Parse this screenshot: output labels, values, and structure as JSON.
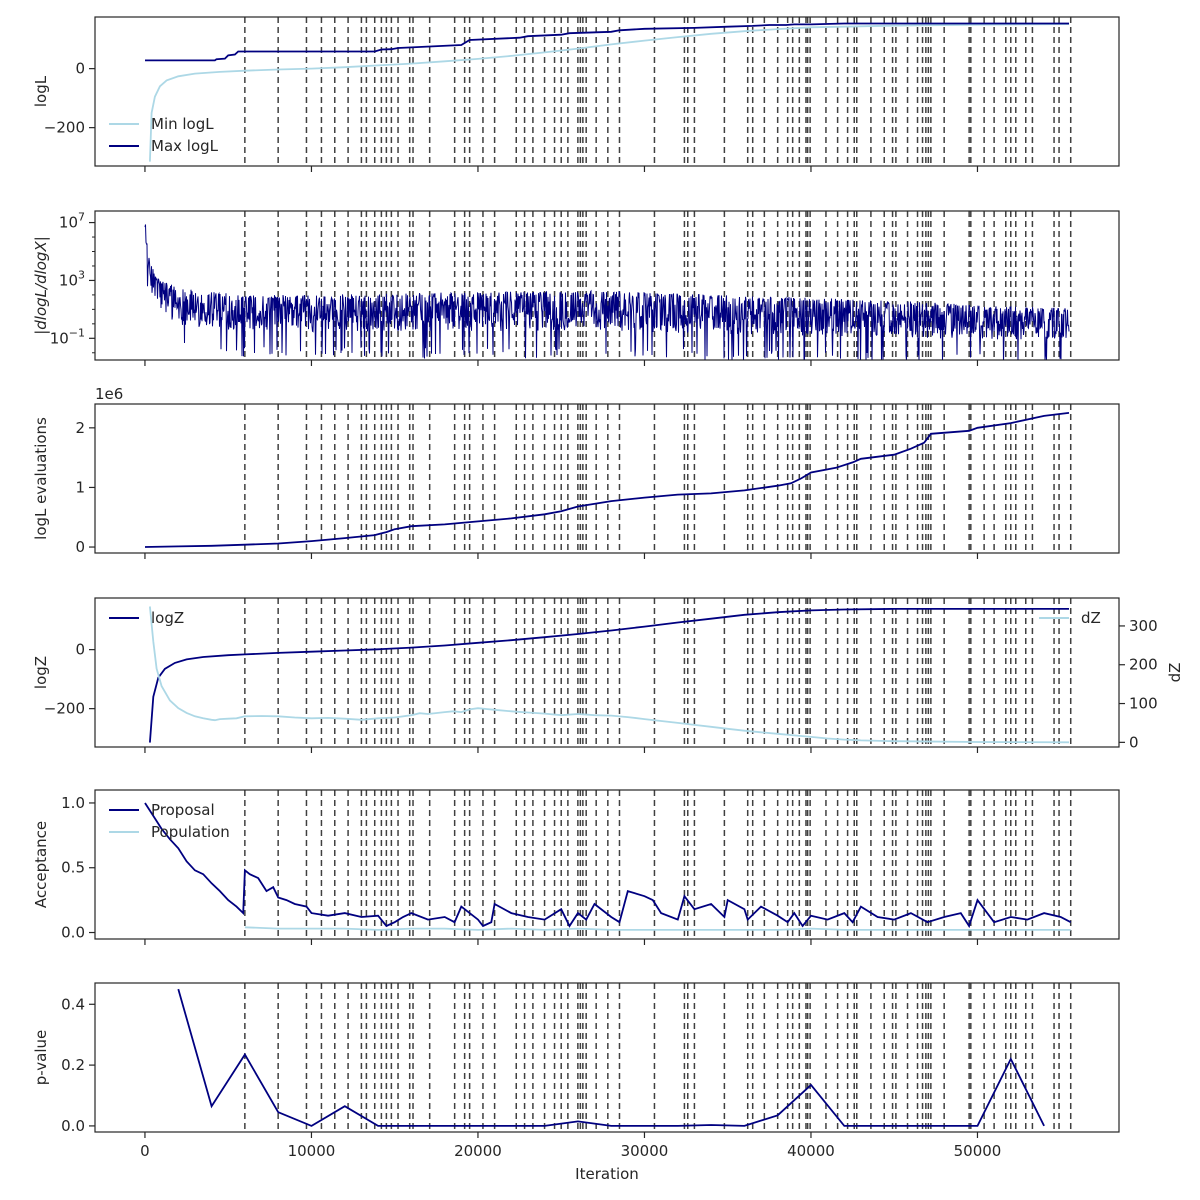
{
  "figure": {
    "xlabel": "Iteration",
    "xlim": [
      -3000,
      58500
    ],
    "xticks": [
      0,
      10000,
      20000,
      30000,
      40000,
      50000
    ],
    "xtick_labels": [
      "0",
      "10000",
      "20000",
      "30000",
      "40000",
      "50000"
    ]
  },
  "colors": {
    "light": "#add8e6",
    "dark": "#000080",
    "vline": "#404040"
  },
  "vlines": [
    6000,
    8000,
    9700,
    10600,
    11400,
    12200,
    13000,
    13300,
    13800,
    14200,
    14500,
    14800,
    15200,
    15900,
    16100,
    17100,
    18600,
    19200,
    19500,
    20300,
    21000,
    22300,
    22800,
    23300,
    24000,
    24600,
    25000,
    25400,
    26000,
    26150,
    26300,
    26500,
    27100,
    27800,
    28500,
    30600,
    32400,
    32600,
    33000,
    34800,
    36200,
    36500,
    37200,
    38000,
    38600,
    38900,
    39300,
    39700,
    39800,
    39950,
    40900,
    41600,
    42200,
    42600,
    42750,
    43600,
    44400,
    44900,
    45100,
    45800,
    46400,
    46700,
    46900,
    47050,
    47200,
    48000,
    49500,
    49600,
    50400,
    51000,
    51700,
    52000,
    52300,
    52900,
    53300,
    54600,
    54900,
    55600
  ],
  "chart_data": [
    {
      "type": "line",
      "ylabel": "logL",
      "ylim": [
        -330,
        175
      ],
      "yticks": [
        -200,
        0
      ],
      "ytick_labels": [
        "−200",
        "0"
      ],
      "legend": "bottom-left",
      "series": [
        {
          "name": "Min logL",
          "color": "light",
          "x": [
            300,
            400,
            600,
            900,
            1300,
            2000,
            3000,
            4500,
            6000,
            8000,
            10000,
            12000,
            14000,
            16000,
            18000,
            20000,
            22000,
            24000,
            26000,
            28000,
            30000,
            32000,
            34000,
            36000,
            38000,
            40000,
            45000,
            50000,
            55500
          ],
          "y": [
            -315,
            -150,
            -95,
            -60,
            -40,
            -26,
            -17,
            -11,
            -7,
            -3,
            0,
            5,
            11,
            17,
            25,
            33,
            43,
            55,
            68,
            82,
            95,
            107,
            118,
            127,
            134,
            140,
            146,
            149,
            151
          ]
        },
        {
          "name": "Max logL",
          "color": "dark",
          "x": [
            0,
            4200,
            4300,
            4800,
            5000,
            5400,
            5600,
            13800,
            14200,
            14800,
            15200,
            16000,
            19000,
            19500,
            22500,
            23000,
            25000,
            25500,
            28000,
            28500,
            30000,
            33000,
            35000,
            36500,
            37500,
            38500,
            39000,
            40000,
            42000,
            55500
          ],
          "y": [
            28,
            28,
            32,
            34,
            45,
            48,
            58,
            58,
            65,
            66,
            70,
            72,
            80,
            97,
            105,
            110,
            115,
            120,
            125,
            130,
            135,
            138,
            142,
            145,
            148,
            148,
            150,
            150,
            153,
            153
          ]
        }
      ]
    },
    {
      "type": "line",
      "ylabel": "|dlogL/dlogX|",
      "yscale": "log",
      "ylim": [
        -2.5,
        7.8
      ],
      "yticks": [
        7,
        3,
        -1
      ],
      "ytick_labels": [
        "10^7",
        "10^3",
        "10^-1"
      ],
      "series": [
        {
          "name": "",
          "color": "dark",
          "noisy": true,
          "x": [
            0,
            100,
            300,
            600,
            1000,
            2000,
            4000,
            6000,
            10000,
            15000,
            20000,
            25000,
            30000,
            35000,
            40000,
            45000,
            50000,
            55500
          ],
          "y_upper": [
            7.6,
            5.8,
            4.2,
            3.5,
            3.0,
            2.5,
            2.2,
            2.0,
            2.0,
            2.1,
            2.2,
            2.3,
            2.2,
            2.0,
            1.8,
            1.6,
            1.3,
            1.1
          ],
          "y_lower": [
            7.0,
            4.0,
            2.0,
            1.0,
            0.0,
            -0.8,
            -1.1,
            -1.2,
            -1.3,
            -1.3,
            -1.3,
            -1.3,
            -1.4,
            -1.5,
            -1.6,
            -1.7,
            -1.8,
            -1.7
          ]
        }
      ]
    },
    {
      "type": "line",
      "ylabel": "logL evaluations",
      "offset_label": "1e6",
      "ylim": [
        -0.1,
        2.4
      ],
      "yticks": [
        0,
        1,
        2
      ],
      "ytick_labels": [
        "0",
        "1",
        "2"
      ],
      "series": [
        {
          "name": "",
          "color": "dark",
          "x": [
            0,
            2000,
            4000,
            6000,
            8000,
            10000,
            12000,
            13800,
            14500,
            15000,
            16000,
            18000,
            20000,
            22000,
            24000,
            25000,
            26000,
            28000,
            30000,
            32000,
            34000,
            36000,
            38000,
            38800,
            39400,
            40000,
            41500,
            42500,
            43000,
            45000,
            46000,
            46800,
            47200,
            49500,
            50000,
            52000,
            54000,
            55500
          ],
          "y": [
            0,
            0.01,
            0.02,
            0.04,
            0.06,
            0.1,
            0.15,
            0.2,
            0.25,
            0.3,
            0.35,
            0.38,
            0.43,
            0.48,
            0.55,
            0.6,
            0.68,
            0.77,
            0.83,
            0.88,
            0.9,
            0.95,
            1.03,
            1.07,
            1.15,
            1.25,
            1.33,
            1.42,
            1.48,
            1.55,
            1.65,
            1.75,
            1.9,
            1.95,
            2.0,
            2.08,
            2.2,
            2.25
          ]
        }
      ]
    },
    {
      "type": "line",
      "ylabel": "logZ",
      "ylim": [
        -330,
        175
      ],
      "yticks": [
        -200,
        0
      ],
      "ytick_labels": [
        "−200",
        "0"
      ],
      "ylabel_right": "dZ",
      "ylim_right": [
        -12,
        372
      ],
      "yticks_right": [
        0,
        100,
        200,
        300
      ],
      "ytick_labels_right": [
        "0",
        "100",
        "200",
        "300"
      ],
      "series": [
        {
          "name": "logZ",
          "color": "dark",
          "axis": "left",
          "legend": "top-left",
          "x": [
            300,
            500,
            800,
            1200,
            1800,
            2500,
            3500,
            5000,
            6000,
            8000,
            10000,
            12000,
            14000,
            16000,
            18000,
            20000,
            22000,
            24000,
            26000,
            28000,
            30000,
            32000,
            34000,
            36000,
            38000,
            40000,
            42000,
            45000,
            55500
          ],
          "y": [
            -315,
            -160,
            -95,
            -65,
            -45,
            -33,
            -25,
            -19,
            -16,
            -11,
            -7,
            -3,
            1,
            7,
            14,
            23,
            32,
            42,
            53,
            65,
            78,
            92,
            105,
            118,
            127,
            133,
            136,
            138,
            138
          ]
        },
        {
          "name": "dZ",
          "color": "light",
          "axis": "right",
          "legend": "top-right",
          "x": [
            300,
            500,
            700,
            1000,
            1500,
            2000,
            2500,
            3000,
            3500,
            4000,
            4200,
            4500,
            5000,
            5500,
            6000,
            7000,
            8000,
            9000,
            10000,
            11000,
            12000,
            13000,
            14000,
            15000,
            16000,
            16500,
            17000,
            18000,
            18500,
            19000,
            19500,
            20000,
            20500,
            21000,
            22000,
            23000,
            24000,
            25000,
            26000,
            27000,
            28000,
            29000,
            30000,
            31000,
            32000,
            33000,
            34000,
            35000,
            36000,
            37000,
            38000,
            39000,
            40000,
            41000,
            42000,
            43000,
            45000,
            50000,
            55500
          ],
          "y": [
            350,
            260,
            190,
            145,
            108,
            88,
            76,
            67,
            62,
            58,
            57,
            60,
            61,
            62,
            67,
            68,
            67,
            64,
            62,
            63,
            61,
            58,
            62,
            64,
            70,
            75,
            73,
            78,
            80,
            78,
            85,
            88,
            86,
            84,
            80,
            77,
            74,
            70,
            73,
            70,
            69,
            65,
            60,
            55,
            50,
            45,
            40,
            35,
            30,
            26,
            22,
            18,
            14,
            10,
            7,
            5,
            3,
            1,
            0
          ]
        }
      ]
    },
    {
      "type": "line",
      "ylabel": "Acceptance",
      "ylim": [
        -0.05,
        1.1
      ],
      "yticks": [
        0,
        0.5,
        1
      ],
      "ytick_labels": [
        "0.0",
        "0.5",
        "1.0"
      ],
      "legend": "top-left",
      "series": [
        {
          "name": "Proposal",
          "color": "dark",
          "x": [
            0,
            500,
            1000,
            1500,
            2000,
            2500,
            3000,
            3500,
            4000,
            4500,
            5000,
            5500,
            5900,
            6000,
            6300,
            6800,
            7300,
            7700,
            8000,
            8500,
            9000,
            9700,
            10000,
            11000,
            12000,
            13000,
            14000,
            14500,
            15000,
            15500,
            16000,
            17000,
            18000,
            18600,
            19000,
            20000,
            20300,
            20800,
            21000,
            22000,
            23000,
            24000,
            25000,
            25500,
            26000,
            26500,
            27000,
            28000,
            28500,
            29000,
            30000,
            30500,
            31000,
            32000,
            32400,
            33000,
            34000,
            34800,
            35000,
            36000,
            36200,
            37000,
            38000,
            38600,
            39000,
            39500,
            40000,
            41000,
            42000,
            42500,
            43000,
            44000,
            45000,
            46000,
            47000,
            48000,
            49000,
            49500,
            50000,
            51000,
            52000,
            53000,
            54000,
            55000,
            55600
          ],
          "y": [
            1.0,
            0.9,
            0.8,
            0.72,
            0.65,
            0.55,
            0.48,
            0.45,
            0.38,
            0.32,
            0.25,
            0.2,
            0.15,
            0.48,
            0.45,
            0.42,
            0.32,
            0.35,
            0.27,
            0.25,
            0.22,
            0.2,
            0.15,
            0.13,
            0.15,
            0.12,
            0.13,
            0.05,
            0.08,
            0.12,
            0.15,
            0.1,
            0.12,
            0.08,
            0.2,
            0.1,
            0.05,
            0.08,
            0.22,
            0.15,
            0.12,
            0.1,
            0.18,
            0.05,
            0.15,
            0.1,
            0.22,
            0.12,
            0.08,
            0.32,
            0.28,
            0.25,
            0.15,
            0.1,
            0.28,
            0.18,
            0.22,
            0.12,
            0.25,
            0.18,
            0.1,
            0.2,
            0.13,
            0.08,
            0.15,
            0.05,
            0.13,
            0.1,
            0.15,
            0.08,
            0.2,
            0.12,
            0.1,
            0.15,
            0.08,
            0.12,
            0.15,
            0.05,
            0.25,
            0.08,
            0.12,
            0.1,
            0.15,
            0.12,
            0.08
          ]
        },
        {
          "name": "Population",
          "color": "light",
          "x": [
            6000,
            8000,
            10000,
            12000,
            14000,
            16000,
            18000,
            20000,
            22000,
            24000,
            26000,
            28000,
            30000,
            32000,
            34000,
            36000,
            38000,
            40000,
            42000,
            44000,
            46000,
            48000,
            50000,
            52000,
            54000,
            55600
          ],
          "y": [
            0.04,
            0.03,
            0.03,
            0.03,
            0.02,
            0.03,
            0.03,
            0.02,
            0.03,
            0.02,
            0.03,
            0.02,
            0.02,
            0.02,
            0.02,
            0.02,
            0.02,
            0.03,
            0.02,
            0.02,
            0.02,
            0.02,
            0.02,
            0.02,
            0.02,
            0.02
          ]
        }
      ]
    },
    {
      "type": "line",
      "ylabel": "p-value",
      "ylim": [
        -0.02,
        0.47
      ],
      "yticks": [
        0,
        0.2,
        0.4
      ],
      "ytick_labels": [
        "0.0",
        "0.2",
        "0.4"
      ],
      "series": [
        {
          "name": "",
          "color": "dark",
          "x": [
            2000,
            4000,
            6000,
            8000,
            10000,
            12000,
            14000,
            16000,
            18000,
            20000,
            22000,
            24000,
            26000,
            28000,
            30000,
            32000,
            34000,
            36000,
            38000,
            40000,
            42000,
            44000,
            46000,
            48000,
            50000,
            52000,
            54000
          ],
          "y": [
            0.45,
            0.065,
            0.235,
            0.045,
            0.0,
            0.065,
            0.0,
            0.0,
            0.0,
            0.0,
            0.0,
            0.0,
            0.015,
            0.0,
            0.0,
            0.0,
            0.003,
            0.0,
            0.035,
            0.135,
            0.0,
            0.0,
            0.0,
            0.0,
            0.0,
            0.22,
            0.0
          ]
        }
      ]
    }
  ]
}
